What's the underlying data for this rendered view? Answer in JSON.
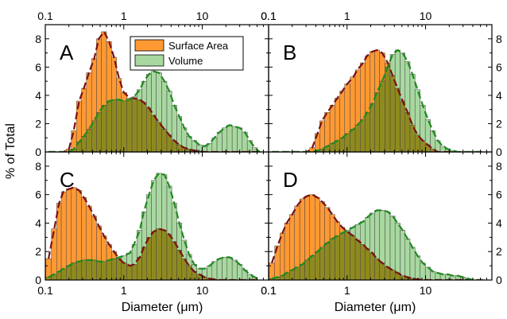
{
  "figure": {
    "ylabel": "% of Total",
    "xlabel": "Diameter (μm)",
    "legend": {
      "surface": "Surface Area",
      "volume": "Volume"
    },
    "colors": {
      "surface": "#ff9933",
      "volume": "#a8d8a0",
      "overlap": "#8f8a1f",
      "surface_fit": "#7a1010",
      "volume_fit": "#1f8a1f"
    }
  },
  "chart_data": [
    {
      "type": "bar",
      "panel": "A",
      "x_scale": "log",
      "xlim": [
        0.1,
        70
      ],
      "ylim": [
        0,
        9
      ],
      "x_ticks": [
        "0.1",
        "1",
        "10"
      ],
      "y_ticks": [
        "0",
        "2",
        "4",
        "6",
        "8"
      ],
      "series": [
        {
          "name": "Surface Area",
          "x": [
            0.11,
            0.13,
            0.15,
            0.17,
            0.2,
            0.23,
            0.27,
            0.31,
            0.36,
            0.42,
            0.48,
            0.56,
            0.65,
            0.75,
            0.87,
            1.0,
            1.2,
            1.35,
            1.6,
            1.8,
            2.1,
            2.4,
            2.8,
            3.3,
            3.8,
            4.4,
            5.1,
            5.9,
            6.8,
            7.9,
            9.2,
            10.7,
            12.4,
            14.3,
            16.6,
            19.3,
            22.3,
            25.9,
            30,
            34.8,
            40.3,
            46.7,
            54
          ],
          "values": [
            0,
            0,
            0,
            0,
            0.2,
            1.5,
            3.6,
            4.5,
            5.6,
            6.6,
            8.0,
            8.5,
            7.8,
            6.7,
            5.2,
            4.2,
            3.8,
            3.8,
            3.7,
            3.5,
            3.1,
            2.6,
            2.1,
            1.6,
            1.2,
            0.8,
            0.5,
            0.3,
            0.2,
            0.1,
            0.05,
            0,
            0,
            0,
            0,
            0,
            0,
            0,
            0,
            0,
            0,
            0,
            0
          ]
        },
        {
          "name": "Volume",
          "x": [
            0.11,
            0.13,
            0.15,
            0.17,
            0.2,
            0.23,
            0.27,
            0.31,
            0.36,
            0.42,
            0.48,
            0.56,
            0.65,
            0.75,
            0.87,
            1.0,
            1.2,
            1.35,
            1.6,
            1.8,
            2.1,
            2.4,
            2.8,
            3.3,
            3.8,
            4.4,
            5.1,
            5.9,
            6.8,
            7.9,
            9.2,
            10.7,
            12.4,
            14.3,
            16.6,
            19.3,
            22.3,
            25.9,
            30,
            34.8,
            40.3,
            46.7,
            54
          ],
          "values": [
            0,
            0,
            0,
            0,
            0,
            0.2,
            0.7,
            1.1,
            1.6,
            2.2,
            2.8,
            3.3,
            3.6,
            3.7,
            3.7,
            3.6,
            3.7,
            3.9,
            4.4,
            5.0,
            5.5,
            5.7,
            5.6,
            5.0,
            4.3,
            3.3,
            2.5,
            1.7,
            1.1,
            0.8,
            0.5,
            0.4,
            0.6,
            1.0,
            1.4,
            1.7,
            1.9,
            1.8,
            1.7,
            1.4,
            0.8,
            0.3,
            0
          ]
        }
      ]
    },
    {
      "type": "bar",
      "panel": "B",
      "x_scale": "log",
      "xlim": [
        0.1,
        70
      ],
      "ylim": [
        0,
        9
      ],
      "x_ticks": [
        "0.1",
        "1",
        "10"
      ],
      "y_ticks": [
        "0",
        "2",
        "4",
        "6",
        "8"
      ],
      "series": [
        {
          "name": "Surface Area",
          "x": [
            0.11,
            0.13,
            0.15,
            0.17,
            0.2,
            0.23,
            0.27,
            0.31,
            0.36,
            0.42,
            0.48,
            0.56,
            0.65,
            0.75,
            0.87,
            1.0,
            1.2,
            1.35,
            1.6,
            1.8,
            2.1,
            2.4,
            2.8,
            3.3,
            3.8,
            4.4,
            5.1,
            5.9,
            6.8,
            7.9,
            9.2,
            10.7,
            12.4,
            14.3,
            16.6,
            19.3,
            22.3,
            25.9,
            30,
            34.8,
            40.3,
            46.7,
            54
          ],
          "values": [
            0,
            0,
            0,
            0,
            0,
            0,
            0,
            0,
            0.3,
            1.3,
            2.2,
            2.8,
            3.3,
            3.8,
            4.3,
            4.8,
            5.3,
            5.8,
            6.3,
            6.8,
            7.1,
            7.2,
            7.0,
            6.3,
            5.4,
            4.5,
            3.6,
            2.8,
            1.9,
            1.2,
            0.8,
            0.5,
            0.2,
            0,
            0,
            0,
            0,
            0,
            0,
            0,
            0,
            0,
            0
          ]
        },
        {
          "name": "Volume",
          "x": [
            0.11,
            0.13,
            0.15,
            0.17,
            0.2,
            0.23,
            0.27,
            0.31,
            0.36,
            0.42,
            0.48,
            0.56,
            0.65,
            0.75,
            0.87,
            1.0,
            1.2,
            1.35,
            1.6,
            1.8,
            2.1,
            2.4,
            2.8,
            3.3,
            3.8,
            4.4,
            5.1,
            5.9,
            6.8,
            7.9,
            9.2,
            10.7,
            12.4,
            14.3,
            16.6,
            19.3,
            22.3,
            25.9,
            30,
            34.8,
            40.3,
            46.7,
            54
          ],
          "values": [
            0,
            0,
            0,
            0,
            0,
            0,
            0,
            0,
            0,
            0.1,
            0.2,
            0.4,
            0.6,
            0.8,
            1.0,
            1.3,
            1.6,
            1.9,
            2.3,
            2.8,
            3.4,
            4.2,
            5.0,
            6.0,
            6.9,
            7.2,
            7.0,
            6.4,
            5.5,
            4.4,
            3.3,
            2.3,
            1.5,
            0.8,
            0.4,
            0.2,
            0.1,
            0,
            0,
            0,
            0,
            0,
            0
          ]
        }
      ]
    },
    {
      "type": "bar",
      "panel": "C",
      "x_scale": "log",
      "xlim": [
        0.1,
        70
      ],
      "ylim": [
        0,
        9
      ],
      "x_ticks": [
        "0.1",
        "1",
        "10"
      ],
      "y_ticks": [
        "0",
        "2",
        "4",
        "6",
        "8"
      ],
      "series": [
        {
          "name": "Surface Area",
          "x": [
            0.11,
            0.13,
            0.15,
            0.17,
            0.2,
            0.23,
            0.27,
            0.31,
            0.36,
            0.42,
            0.48,
            0.56,
            0.65,
            0.75,
            0.87,
            1.0,
            1.2,
            1.35,
            1.6,
            1.8,
            2.1,
            2.4,
            2.8,
            3.3,
            3.8,
            4.4,
            5.1,
            5.9,
            6.8,
            7.9,
            9.2,
            10.7,
            12.4,
            14.3,
            16.6,
            19.3,
            22.3,
            25.9,
            30,
            34.8,
            40.3,
            46.7,
            54
          ],
          "values": [
            1.5,
            3.6,
            5.4,
            6.2,
            6.4,
            6.5,
            6.3,
            5.8,
            5.2,
            4.5,
            3.8,
            3.1,
            2.5,
            2.0,
            1.5,
            1.2,
            1.0,
            1.1,
            1.6,
            2.3,
            3.0,
            3.4,
            3.6,
            3.5,
            3.2,
            2.7,
            2.1,
            1.5,
            1.0,
            0.6,
            0.4,
            0.2,
            0.1,
            0.05,
            0,
            0,
            0,
            0,
            0,
            0,
            0,
            0,
            0
          ]
        },
        {
          "name": "Volume",
          "x": [
            0.11,
            0.13,
            0.15,
            0.17,
            0.2,
            0.23,
            0.27,
            0.31,
            0.36,
            0.42,
            0.48,
            0.56,
            0.65,
            0.75,
            0.87,
            1.0,
            1.2,
            1.35,
            1.6,
            1.8,
            2.1,
            2.4,
            2.8,
            3.3,
            3.8,
            4.4,
            5.1,
            5.9,
            6.8,
            7.9,
            9.2,
            10.7,
            12.4,
            14.3,
            16.6,
            19.3,
            22.3,
            25.9,
            30,
            34.8,
            40.3,
            46.7,
            54
          ],
          "values": [
            0.2,
            0.4,
            0.6,
            0.8,
            1.0,
            1.2,
            1.3,
            1.4,
            1.4,
            1.4,
            1.3,
            1.3,
            1.4,
            1.5,
            1.6,
            1.7,
            1.9,
            2.5,
            3.5,
            4.8,
            6.0,
            7.0,
            7.5,
            7.4,
            6.6,
            5.4,
            4.0,
            2.8,
            1.8,
            1.1,
            0.8,
            0.8,
            1.0,
            1.3,
            1.5,
            1.6,
            1.6,
            1.4,
            1.1,
            0.7,
            0.4,
            0.2,
            0
          ]
        }
      ]
    },
    {
      "type": "bar",
      "panel": "D",
      "x_scale": "log",
      "xlim": [
        0.1,
        70
      ],
      "ylim": [
        0,
        9
      ],
      "x_ticks": [
        "0.1",
        "1",
        "10"
      ],
      "y_ticks": [
        "0",
        "2",
        "4",
        "6",
        "8"
      ],
      "series": [
        {
          "name": "Surface Area",
          "x": [
            0.11,
            0.13,
            0.15,
            0.17,
            0.2,
            0.23,
            0.27,
            0.31,
            0.36,
            0.42,
            0.48,
            0.56,
            0.65,
            0.75,
            0.87,
            1.0,
            1.2,
            1.35,
            1.6,
            1.8,
            2.1,
            2.4,
            2.8,
            3.3,
            3.8,
            4.4,
            5.1,
            5.9,
            6.8,
            7.9,
            9.2,
            10.7,
            12.4,
            14.3,
            16.6,
            19.3,
            22.3,
            25.9,
            30,
            34.8,
            40.3,
            46.7,
            54
          ],
          "values": [
            1.2,
            2.4,
            3.3,
            4.0,
            4.6,
            5.2,
            5.7,
            5.9,
            6.0,
            5.8,
            5.5,
            5.1,
            4.6,
            4.1,
            3.7,
            3.4,
            3.1,
            2.8,
            2.5,
            2.2,
            1.9,
            1.5,
            1.2,
            0.9,
            0.7,
            0.5,
            0.3,
            0.2,
            0.1,
            0.05,
            0,
            0,
            0,
            0,
            0,
            0,
            0,
            0,
            0,
            0,
            0,
            0,
            0
          ]
        },
        {
          "name": "Volume",
          "x": [
            0.11,
            0.13,
            0.15,
            0.17,
            0.2,
            0.23,
            0.27,
            0.31,
            0.36,
            0.42,
            0.48,
            0.56,
            0.65,
            0.75,
            0.87,
            1.0,
            1.2,
            1.35,
            1.6,
            1.8,
            2.1,
            2.4,
            2.8,
            3.3,
            3.8,
            4.4,
            5.1,
            5.9,
            6.8,
            7.9,
            9.2,
            10.7,
            12.4,
            14.3,
            16.6,
            19.3,
            22.3,
            25.9,
            30,
            34.8,
            40.3,
            46.7,
            54
          ],
          "values": [
            0.1,
            0.2,
            0.3,
            0.5,
            0.7,
            0.9,
            1.1,
            1.4,
            1.7,
            2.0,
            2.3,
            2.6,
            2.9,
            3.1,
            3.3,
            3.5,
            3.7,
            3.9,
            4.1,
            4.4,
            4.7,
            4.9,
            4.9,
            4.8,
            4.5,
            4.0,
            3.5,
            2.9,
            2.3,
            1.7,
            1.2,
            0.9,
            0.6,
            0.5,
            0.4,
            0.4,
            0.3,
            0.3,
            0.2,
            0.1,
            0,
            0,
            0
          ]
        }
      ]
    }
  ]
}
